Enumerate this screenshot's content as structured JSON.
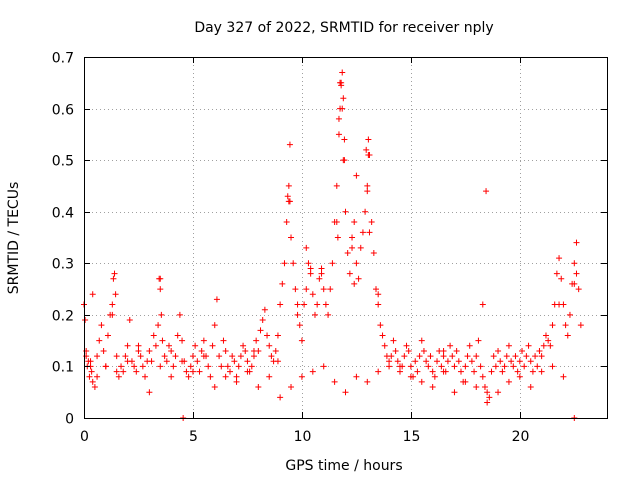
{
  "chart_data": {
    "type": "scatter",
    "title": "Day 327 of 2022, SRMTID for receiver nply",
    "xlabel": "GPS time / hours",
    "ylabel": "SRMTID / TECUs",
    "xlim": [
      0,
      24
    ],
    "ylim": [
      0,
      0.7
    ],
    "xticks": [
      "0",
      "5",
      "10",
      "15",
      "20"
    ],
    "yticks": [
      "0",
      "0.1",
      "0.2",
      "0.3",
      "0.4",
      "0.5",
      "0.6",
      "0.7"
    ],
    "grid": true,
    "legend": "none",
    "marker": "+",
    "color": "#ff0000",
    "series": [
      {
        "name": "SRMTID",
        "x": [
          0.0,
          0.05,
          0.1,
          0.15,
          0.2,
          0.25,
          0.3,
          0.35,
          0.4,
          0.5,
          0.6,
          0.7,
          0.8,
          0.9,
          1.0,
          1.1,
          1.2,
          1.3,
          1.35,
          1.4,
          1.45,
          1.5,
          1.6,
          1.7,
          1.8,
          1.9,
          2.0,
          2.1,
          2.2,
          2.3,
          2.4,
          2.5,
          2.6,
          2.7,
          2.8,
          2.9,
          3.0,
          3.1,
          3.2,
          3.3,
          3.4,
          3.45,
          3.5,
          3.55,
          3.6,
          3.7,
          3.8,
          3.9,
          4.0,
          4.1,
          4.2,
          4.3,
          4.4,
          4.5,
          4.6,
          4.7,
          4.8,
          4.9,
          5.0,
          5.1,
          5.2,
          5.3,
          5.4,
          5.5,
          5.6,
          5.7,
          5.8,
          5.9,
          6.0,
          6.1,
          6.2,
          6.3,
          6.4,
          6.5,
          6.6,
          6.7,
          6.8,
          6.9,
          7.0,
          7.1,
          7.2,
          7.3,
          7.4,
          7.5,
          7.6,
          7.7,
          7.8,
          7.9,
          8.0,
          8.1,
          8.2,
          8.3,
          8.4,
          8.5,
          8.6,
          8.7,
          8.8,
          8.9,
          9.0,
          9.1,
          9.2,
          9.3,
          9.35,
          9.4,
          9.45,
          9.5,
          9.6,
          9.7,
          9.8,
          9.9,
          10.0,
          10.1,
          10.2,
          10.3,
          10.4,
          10.5,
          10.6,
          10.7,
          10.8,
          10.9,
          11.0,
          11.1,
          11.2,
          11.3,
          11.4,
          11.5,
          11.6,
          11.7,
          11.75,
          11.8,
          11.85,
          11.9,
          11.95,
          12.0,
          12.1,
          12.2,
          12.3,
          12.4,
          12.5,
          12.6,
          12.7,
          12.8,
          12.9,
          13.0,
          13.05,
          13.1,
          13.2,
          13.3,
          13.4,
          13.5,
          13.6,
          13.7,
          13.8,
          13.9,
          14.0,
          14.1,
          14.2,
          14.3,
          14.4,
          14.5,
          14.6,
          14.7,
          14.8,
          14.9,
          15.0,
          15.1,
          15.2,
          15.3,
          15.4,
          15.5,
          15.6,
          15.7,
          15.8,
          15.9,
          16.0,
          16.1,
          16.2,
          16.3,
          16.4,
          16.5,
          16.6,
          16.7,
          16.8,
          16.9,
          17.0,
          17.1,
          17.2,
          17.3,
          17.4,
          17.5,
          17.6,
          17.7,
          17.8,
          17.9,
          18.0,
          18.1,
          18.2,
          18.3,
          18.4,
          18.5,
          18.6,
          18.7,
          18.8,
          18.9,
          19.0,
          19.1,
          19.2,
          19.3,
          19.4,
          19.5,
          19.6,
          19.7,
          19.8,
          19.9,
          20.0,
          20.1,
          20.2,
          20.3,
          20.4,
          20.5,
          20.6,
          20.7,
          20.8,
          20.9,
          21.0,
          21.1,
          21.2,
          21.3,
          21.4,
          21.5,
          21.6,
          21.7,
          21.8,
          21.9,
          22.0,
          22.1,
          22.2,
          22.3,
          22.4,
          22.5,
          22.6,
          22.7,
          22.8,
          0.1,
          0.3,
          0.6,
          1.0,
          1.5,
          2.0,
          2.5,
          3.0,
          3.5,
          4.0,
          4.5,
          5.0,
          5.5,
          6.0,
          6.5,
          7.0,
          7.5,
          8.0,
          8.5,
          9.0,
          9.5,
          10.0,
          10.5,
          11.0,
          11.5,
          12.0,
          12.5,
          13.0,
          13.5,
          14.0,
          14.5,
          15.0,
          15.5,
          16.0,
          16.5,
          17.0,
          17.5,
          18.0,
          18.5,
          19.0,
          19.5,
          20.0,
          20.5,
          21.0,
          21.5,
          22.0,
          22.5,
          4.55,
          18.45,
          9.4,
          9.45,
          11.7,
          11.75,
          11.8,
          11.85,
          11.9,
          11.95,
          12.95,
          13.0,
          13.05,
          13.1,
          12.3,
          12.4,
          12.5,
          11.6,
          11.65,
          10.2,
          10.4,
          10.9,
          9.8,
          13.5,
          18.3,
          8.9,
          7.8,
          0.4,
          1.3,
          3.5,
          16.5,
          21.8,
          22.5,
          22.6
        ],
        "y": [
          0.22,
          0.19,
          0.12,
          0.1,
          0.11,
          0.08,
          0.1,
          0.09,
          0.07,
          0.06,
          0.08,
          0.15,
          0.18,
          0.13,
          0.1,
          0.16,
          0.2,
          0.22,
          0.27,
          0.28,
          0.24,
          0.12,
          0.08,
          0.1,
          0.09,
          0.12,
          0.14,
          0.19,
          0.11,
          0.1,
          0.09,
          0.14,
          0.12,
          0.1,
          0.08,
          0.11,
          0.13,
          0.11,
          0.16,
          0.14,
          0.18,
          0.27,
          0.25,
          0.2,
          0.15,
          0.12,
          0.11,
          0.14,
          0.13,
          0.1,
          0.12,
          0.16,
          0.2,
          0.15,
          0.11,
          0.09,
          0.08,
          0.1,
          0.12,
          0.14,
          0.11,
          0.09,
          0.13,
          0.15,
          0.12,
          0.1,
          0.08,
          0.14,
          0.18,
          0.23,
          0.12,
          0.1,
          0.15,
          0.13,
          0.1,
          0.09,
          0.12,
          0.11,
          0.08,
          0.1,
          0.12,
          0.14,
          0.13,
          0.11,
          0.09,
          0.1,
          0.12,
          0.15,
          0.13,
          0.17,
          0.19,
          0.21,
          0.16,
          0.14,
          0.12,
          0.11,
          0.13,
          0.16,
          0.22,
          0.26,
          0.3,
          0.38,
          0.43,
          0.45,
          0.42,
          0.35,
          0.3,
          0.25,
          0.2,
          0.18,
          0.15,
          0.22,
          0.25,
          0.3,
          0.28,
          0.24,
          0.2,
          0.22,
          0.27,
          0.29,
          0.25,
          0.22,
          0.2,
          0.25,
          0.3,
          0.38,
          0.45,
          0.55,
          0.6,
          0.65,
          0.67,
          0.62,
          0.5,
          0.4,
          0.32,
          0.28,
          0.35,
          0.38,
          0.3,
          0.27,
          0.33,
          0.36,
          0.4,
          0.45,
          0.54,
          0.51,
          0.38,
          0.32,
          0.25,
          0.22,
          0.18,
          0.16,
          0.14,
          0.12,
          0.1,
          0.12,
          0.15,
          0.13,
          0.11,
          0.09,
          0.1,
          0.12,
          0.14,
          0.13,
          0.1,
          0.08,
          0.11,
          0.09,
          0.12,
          0.15,
          0.13,
          0.11,
          0.1,
          0.12,
          0.09,
          0.08,
          0.11,
          0.13,
          0.1,
          0.12,
          0.09,
          0.11,
          0.14,
          0.12,
          0.1,
          0.13,
          0.11,
          0.09,
          0.07,
          0.1,
          0.12,
          0.14,
          0.11,
          0.09,
          0.12,
          0.15,
          0.1,
          0.08,
          0.06,
          0.05,
          0.04,
          0.09,
          0.12,
          0.1,
          0.13,
          0.11,
          0.09,
          0.1,
          0.12,
          0.14,
          0.11,
          0.1,
          0.12,
          0.09,
          0.11,
          0.13,
          0.1,
          0.12,
          0.14,
          0.11,
          0.09,
          0.12,
          0.1,
          0.13,
          0.12,
          0.14,
          0.16,
          0.15,
          0.14,
          0.18,
          0.22,
          0.28,
          0.31,
          0.27,
          0.22,
          0.18,
          0.16,
          0.2,
          0.26,
          0.3,
          0.34,
          0.25,
          0.18,
          0.13,
          0.11,
          0.12,
          0.1,
          0.09,
          0.11,
          0.13,
          0.05,
          0.1,
          0.08,
          0.11,
          0.09,
          0.12,
          0.06,
          0.08,
          0.07,
          0.09,
          0.06,
          0.08,
          0.04,
          0.06,
          0.08,
          0.09,
          0.1,
          0.07,
          0.05,
          0.08,
          0.07,
          0.09,
          0.11,
          0.1,
          0.08,
          0.07,
          0.06,
          0.09,
          0.05,
          0.07,
          0.06,
          0.03,
          0.05,
          0.07,
          0.08,
          0.06,
          0.09,
          0.1,
          0.08,
          0.0,
          0.0,
          0.44,
          0.42,
          0.53,
          0.58,
          0.65,
          0.645,
          0.6,
          0.5,
          0.54,
          0.52,
          0.44,
          0.51,
          0.36,
          0.33,
          0.26,
          0.47,
          0.38,
          0.35,
          0.33,
          0.29,
          0.28,
          0.22,
          0.24,
          0.22,
          0.11,
          0.13,
          0.24,
          0.2,
          0.27,
          0.13,
          0.22,
          0.26,
          0.28
        ]
      }
    ]
  }
}
